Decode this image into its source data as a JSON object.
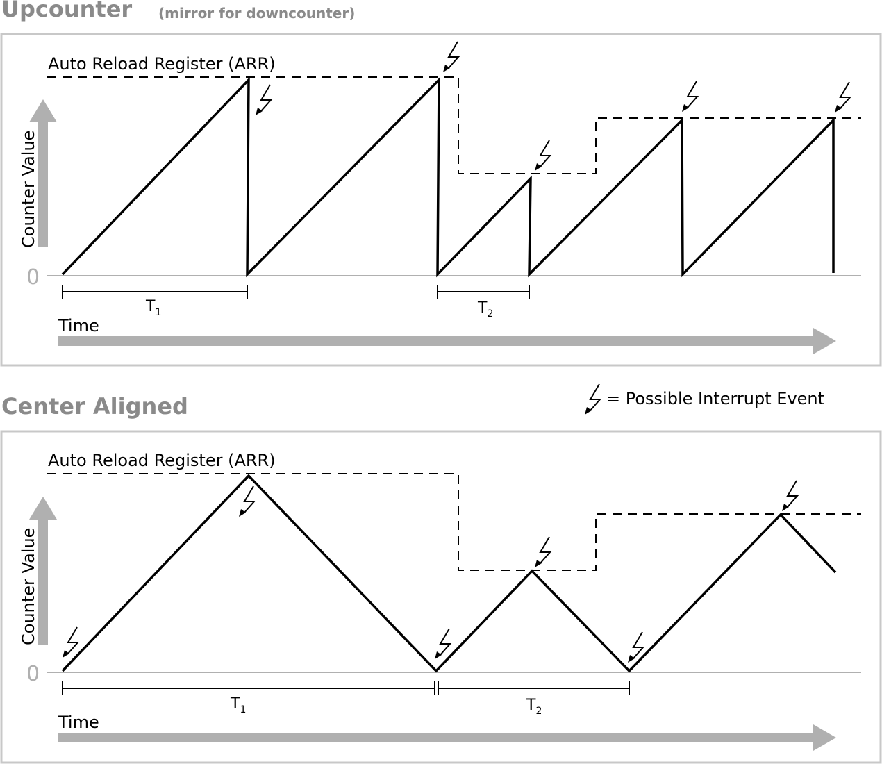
{
  "top": {
    "title": "Upcounter",
    "subtitle": "(mirror for downcounter)",
    "arr_label": "Auto Reload Register (ARR)",
    "y_label": "Counter Value",
    "zero": "0",
    "x_label": "Time",
    "t1": "T",
    "t1_sub": "1",
    "t2": "T",
    "t2_sub": "2"
  },
  "bottom": {
    "title": "Center Aligned",
    "arr_label": "Auto Reload Register (ARR)",
    "y_label": "Counter Value",
    "zero": "0",
    "x_label": "Time",
    "t1": "T",
    "t1_sub": "1",
    "t2": "T",
    "t2_sub": "2"
  },
  "legend": {
    "icon": "lightning-bolt-icon",
    "text": "= Possible Interrupt Event"
  },
  "colors": {
    "frame": "#c8c8c8",
    "axis": "#b0b0b0",
    "title": "#8a8a8a",
    "line": "#000000"
  }
}
